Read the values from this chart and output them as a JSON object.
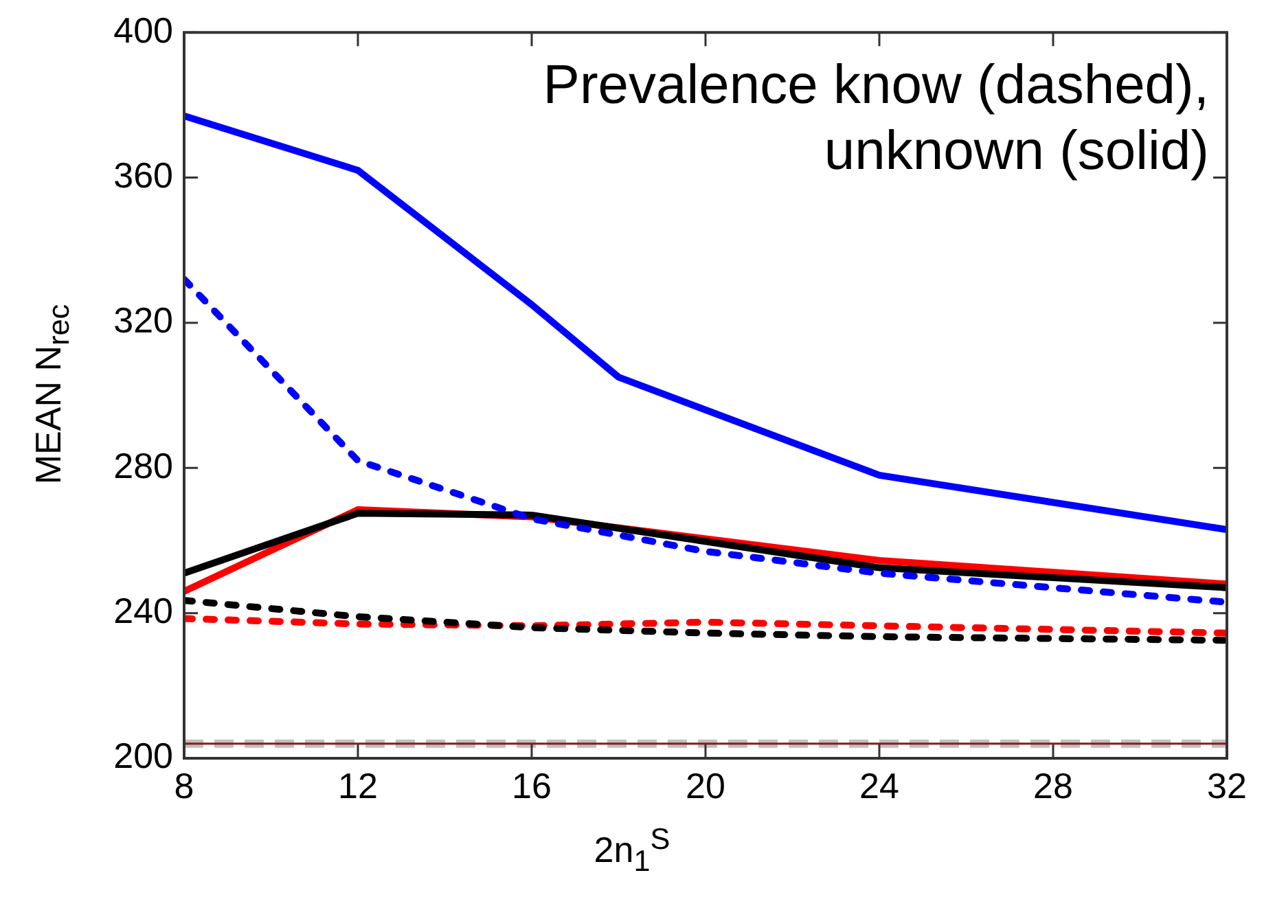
{
  "chart_data": {
    "type": "line",
    "xlabel": "2n$_{1}$$^{S}$",
    "ylabel": "MEAN N$_{rec}$",
    "annotations": [
      "Prevalence know (dashed),\nunknown (solid)"
    ],
    "xlim": [
      8,
      32
    ],
    "xticks": [
      8,
      12,
      16,
      20,
      24,
      28,
      32
    ],
    "ylim": [
      200,
      400
    ],
    "yticks": [
      200,
      240,
      280,
      320,
      360,
      400
    ],
    "grid": false,
    "legend": false,
    "marker": "none",
    "series": [
      {
        "color": "#0000ff",
        "line_style": "solid",
        "x": [
          8,
          12,
          16,
          18,
          24,
          32
        ],
        "values": [
          377,
          362,
          325,
          305,
          278,
          263
        ]
      },
      {
        "color": "#0000ff",
        "line_style": "dotted",
        "x": [
          8,
          12,
          16,
          20,
          24,
          32
        ],
        "values": [
          332,
          282,
          266,
          257,
          251,
          243
        ]
      },
      {
        "color": "#000000",
        "line_style": "solid",
        "x": [
          8,
          12,
          16,
          24,
          32
        ],
        "values": [
          251,
          267.5,
          267,
          252.5,
          247
        ]
      },
      {
        "color": "#ff0000",
        "line_style": "solid",
        "x": [
          8,
          12,
          16,
          24,
          32
        ],
        "values": [
          246,
          268.5,
          266.5,
          254.5,
          248
        ]
      },
      {
        "color": "#000000",
        "line_style": "dotted",
        "x": [
          8,
          12,
          16,
          20,
          24,
          32
        ],
        "values": [
          243.5,
          239,
          236,
          234.5,
          233.5,
          232.5
        ]
      },
      {
        "color": "#ff0000",
        "line_style": "dotted",
        "x": [
          8,
          12,
          16,
          20,
          24,
          32
        ],
        "values": [
          238.5,
          237,
          236.5,
          237.5,
          236.5,
          234.5
        ]
      }
    ],
    "ref_lines": [
      {
        "axis": "y",
        "value": 204,
        "color": "#c0c0c0",
        "line_style": "dashed"
      },
      {
        "axis": "y",
        "value": 204,
        "color": "#8b1a1a",
        "line_style": "solid"
      }
    ]
  }
}
